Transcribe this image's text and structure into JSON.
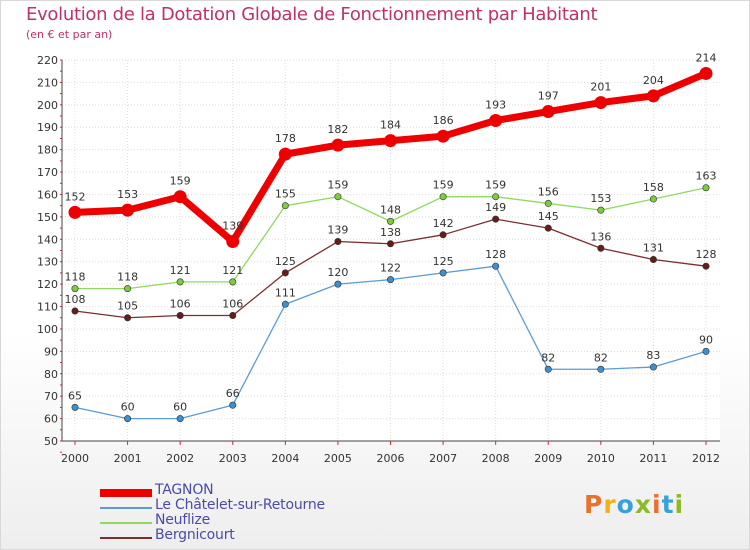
{
  "title": "Evolution de la Dotation Globale de Fonctionnement par Habitant",
  "subtitle": "(en € et par an)",
  "logo": {
    "text": "Proxiti",
    "colors": [
      "#e8712d",
      "#f1b11b",
      "#3aa0d8",
      "#8dbb24",
      "#e8712d",
      "#3aa0d8",
      "#8dbb24"
    ]
  },
  "chart_data": {
    "type": "line",
    "title": "Evolution de la Dotation Globale de Fonctionnement par Habitant",
    "subtitle": "(en € et par an)",
    "xlabel": "",
    "ylabel": "",
    "ylim": [
      50,
      220
    ],
    "y_ticks": [
      50,
      60,
      70,
      80,
      90,
      100,
      110,
      120,
      130,
      140,
      150,
      160,
      170,
      180,
      190,
      200,
      210,
      220
    ],
    "categories": [
      "2000",
      "2001",
      "2002",
      "2003",
      "2004",
      "2005",
      "2006",
      "2007",
      "2008",
      "2009",
      "2010",
      "2011",
      "2012"
    ],
    "grid": true,
    "series": [
      {
        "name": "TAGNON",
        "color": "#ee0000",
        "thick": true,
        "values": [
          152,
          153,
          159,
          139,
          178,
          182,
          184,
          186,
          193,
          197,
          201,
          204,
          214
        ]
      },
      {
        "name": "Le Châtelet-sur-Retourne",
        "color": "#5b9bd5",
        "dot": "#3c8fd0",
        "values": [
          65,
          60,
          60,
          66,
          111,
          120,
          122,
          125,
          128,
          82,
          82,
          83,
          90
        ]
      },
      {
        "name": "Neuflize",
        "color": "#90d860",
        "dot": "#7ccc3c",
        "values": [
          118,
          118,
          121,
          121,
          155,
          159,
          148,
          159,
          159,
          156,
          153,
          158,
          163
        ]
      },
      {
        "name": "Bergnicourt",
        "color": "#7a2e2e",
        "dot": "#6b1a1a",
        "values": [
          108,
          105,
          106,
          106,
          125,
          139,
          138,
          142,
          149,
          145,
          136,
          131,
          128
        ]
      }
    ],
    "legend": {
      "position": "bottom-left"
    }
  }
}
